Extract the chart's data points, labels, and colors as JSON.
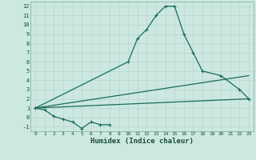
{
  "xlabel": "Humidex (Indice chaleur)",
  "bg_color": "#cce8e0",
  "grid_color": "#b8d8d0",
  "line_color": "#1a6b5a",
  "xlim": [
    -0.5,
    23.5
  ],
  "ylim": [
    -1.5,
    12.5
  ],
  "xticks": [
    0,
    1,
    2,
    3,
    4,
    5,
    6,
    7,
    8,
    9,
    10,
    11,
    12,
    13,
    14,
    15,
    16,
    17,
    18,
    19,
    20,
    21,
    22,
    23
  ],
  "yticks": [
    -1,
    0,
    1,
    2,
    3,
    4,
    5,
    6,
    7,
    8,
    9,
    10,
    11,
    12
  ],
  "series_zigzag": {
    "x": [
      0,
      1,
      2,
      3,
      4,
      5,
      6,
      7,
      8
    ],
    "y": [
      1.0,
      0.8,
      0.1,
      -0.2,
      -0.5,
      -1.2,
      -0.5,
      -0.8,
      -0.8
    ]
  },
  "series_peak": {
    "x": [
      0,
      10,
      11,
      12,
      13,
      14,
      15,
      16,
      17,
      18,
      20,
      22,
      23
    ],
    "y": [
      1.0,
      6.0,
      8.5,
      9.5,
      11.0,
      12.0,
      12.0,
      9.0,
      7.0,
      5.0,
      4.5,
      3.0,
      2.0
    ]
  },
  "series_upper": {
    "x": [
      0,
      23
    ],
    "y": [
      1.0,
      4.5
    ]
  },
  "series_lower": {
    "x": [
      0,
      23
    ],
    "y": [
      1.0,
      2.0
    ]
  }
}
